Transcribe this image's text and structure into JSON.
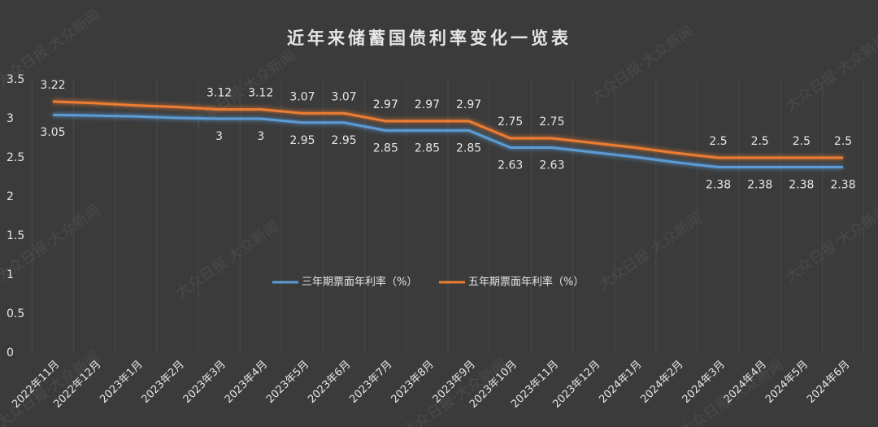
{
  "chart_data": {
    "type": "line",
    "title": "近年来储蓄国债利率变化一览表",
    "watermark": "大众日报·大众新闻",
    "categories": [
      "2022年11月",
      "2022年12月",
      "2023年1月",
      "2023年2月",
      "2023年3月",
      "2023年4月",
      "2023年5月",
      "2023年6月",
      "2023年7月",
      "2023年8月",
      "2023年9月",
      "2023年10月",
      "2023年11月",
      "2023年12月",
      "2024年1月",
      "2024年2月",
      "2024年3月",
      "2024年4月",
      "2024年5月",
      "2024年6月"
    ],
    "series": [
      {
        "name": "三年期票面年利率（%）",
        "color": "#5b9bd5",
        "values": [
          3.05,
          3.04,
          3.03,
          3.01,
          3,
          3,
          2.95,
          2.95,
          2.85,
          2.85,
          2.85,
          2.63,
          2.63,
          2.57,
          2.51,
          2.44,
          2.38,
          2.38,
          2.38,
          2.38
        ],
        "value_labels": [
          "3.05",
          null,
          null,
          null,
          "3",
          "3",
          "2.95",
          "2.95",
          "2.85",
          "2.85",
          "2.85",
          "2.63",
          "2.63",
          null,
          null,
          null,
          "2.38",
          "2.38",
          "2.38",
          "2.38"
        ]
      },
      {
        "name": "五年期票面年利率（%）",
        "color": "#ed7d31",
        "values": [
          3.22,
          3.2,
          3.17,
          3.15,
          3.12,
          3.12,
          3.07,
          3.07,
          2.97,
          2.97,
          2.97,
          2.75,
          2.75,
          2.69,
          2.63,
          2.56,
          2.5,
          2.5,
          2.5,
          2.5
        ],
        "value_labels": [
          "3.22",
          null,
          null,
          null,
          "3.12",
          "3.12",
          "3.07",
          "3.07",
          "2.97",
          "2.97",
          "2.97",
          "2.75",
          "2.75",
          null,
          null,
          null,
          "2.5",
          "2.5",
          "2.5",
          "2.5"
        ]
      }
    ],
    "ylim": [
      0,
      3.5
    ],
    "yticks": [
      0,
      0.5,
      1,
      1.5,
      2,
      2.5,
      3,
      3.5
    ],
    "grid": false,
    "legend": "center"
  }
}
